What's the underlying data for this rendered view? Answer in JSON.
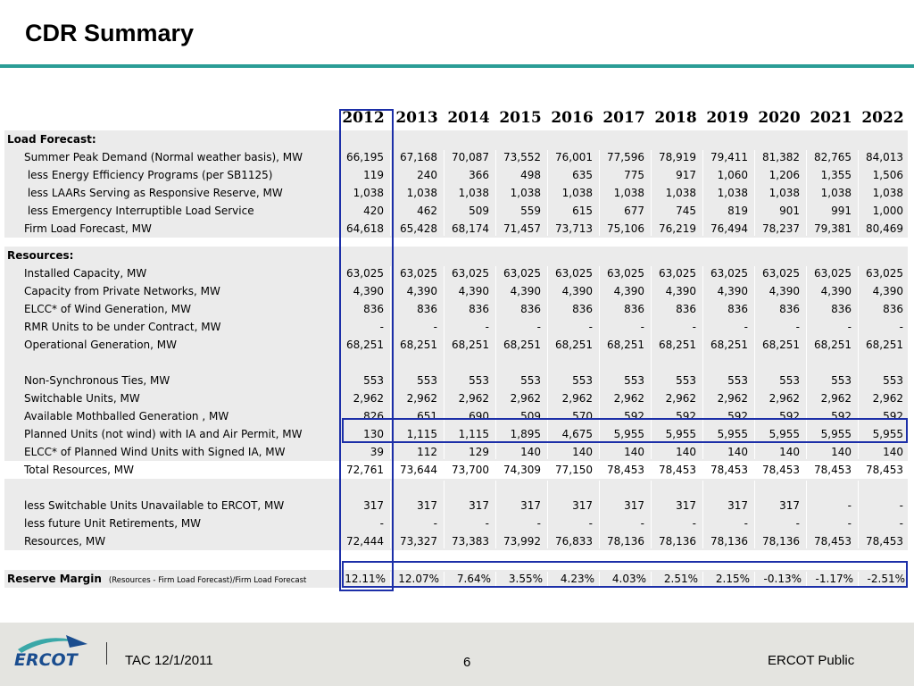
{
  "title": "CDR Summary",
  "years": [
    "2012",
    "2013",
    "2014",
    "2015",
    "2016",
    "2017",
    "2018",
    "2019",
    "2020",
    "2021",
    "2022"
  ],
  "sections": {
    "load": "Load Forecast:",
    "resources": "Resources:"
  },
  "rows": [
    {
      "label": "Summer Peak Demand (Normal weather basis), MW",
      "values": [
        "66,195",
        "67,168",
        "70,087",
        "73,552",
        "76,001",
        "77,596",
        "78,919",
        "79,411",
        "81,382",
        "82,765",
        "84,013"
      ]
    },
    {
      "label": " less Energy Efficiency Programs (per SB1125)",
      "values": [
        "119",
        "240",
        "366",
        "498",
        "635",
        "775",
        "917",
        "1,060",
        "1,206",
        "1,355",
        "1,506"
      ]
    },
    {
      "label": " less LAARs Serving as Responsive Reserve, MW",
      "values": [
        "1,038",
        "1,038",
        "1,038",
        "1,038",
        "1,038",
        "1,038",
        "1,038",
        "1,038",
        "1,038",
        "1,038",
        "1,038"
      ]
    },
    {
      "label": " less Emergency Interruptible Load Service",
      "values": [
        "420",
        "462",
        "509",
        "559",
        "615",
        "677",
        "745",
        "819",
        "901",
        "991",
        "1,000"
      ]
    },
    {
      "label": "Firm Load Forecast, MW",
      "values": [
        "64,618",
        "65,428",
        "68,174",
        "71,457",
        "73,713",
        "75,106",
        "76,219",
        "76,494",
        "78,237",
        "79,381",
        "80,469"
      ]
    },
    {
      "label": "Installed Capacity, MW",
      "values": [
        "63,025",
        "63,025",
        "63,025",
        "63,025",
        "63,025",
        "63,025",
        "63,025",
        "63,025",
        "63,025",
        "63,025",
        "63,025"
      ]
    },
    {
      "label": "Capacity from Private Networks, MW",
      "values": [
        "4,390",
        "4,390",
        "4,390",
        "4,390",
        "4,390",
        "4,390",
        "4,390",
        "4,390",
        "4,390",
        "4,390",
        "4,390"
      ]
    },
    {
      "label": "ELCC* of Wind Generation, MW",
      "values": [
        "836",
        "836",
        "836",
        "836",
        "836",
        "836",
        "836",
        "836",
        "836",
        "836",
        "836"
      ]
    },
    {
      "label": "RMR Units to be under Contract, MW",
      "values": [
        "-",
        "-",
        "-",
        "-",
        "-",
        "-",
        "-",
        "-",
        "-",
        "-",
        "-"
      ]
    },
    {
      "label": "Operational Generation, MW",
      "values": [
        "68,251",
        "68,251",
        "68,251",
        "68,251",
        "68,251",
        "68,251",
        "68,251",
        "68,251",
        "68,251",
        "68,251",
        "68,251"
      ]
    },
    {
      "label": "Non-Synchronous Ties, MW",
      "values": [
        "553",
        "553",
        "553",
        "553",
        "553",
        "553",
        "553",
        "553",
        "553",
        "553",
        "553"
      ]
    },
    {
      "label": "Switchable Units, MW",
      "values": [
        "2,962",
        "2,962",
        "2,962",
        "2,962",
        "2,962",
        "2,962",
        "2,962",
        "2,962",
        "2,962",
        "2,962",
        "2,962"
      ]
    },
    {
      "label": "Available Mothballed Generation , MW",
      "values": [
        "826",
        "651",
        "690",
        "509",
        "570",
        "592",
        "592",
        "592",
        "592",
        "592",
        "592"
      ]
    },
    {
      "label": "Planned Units (not wind) with IA and Air Permit, MW",
      "values": [
        "130",
        "1,115",
        "1,115",
        "1,895",
        "4,675",
        "5,955",
        "5,955",
        "5,955",
        "5,955",
        "5,955",
        "5,955"
      ]
    },
    {
      "label": "ELCC* of Planned Wind Units with Signed IA, MW",
      "values": [
        "39",
        "112",
        "129",
        "140",
        "140",
        "140",
        "140",
        "140",
        "140",
        "140",
        "140"
      ]
    },
    {
      "label": "Total Resources, MW",
      "values": [
        "72,761",
        "73,644",
        "73,700",
        "74,309",
        "77,150",
        "78,453",
        "78,453",
        "78,453",
        "78,453",
        "78,453",
        "78,453"
      ]
    },
    {
      "label": "less Switchable Units Unavailable to ERCOT, MW",
      "values": [
        "317",
        "317",
        "317",
        "317",
        "317",
        "317",
        "317",
        "317",
        "317",
        "-",
        "-"
      ]
    },
    {
      "label": "less future Unit Retirements, MW",
      "values": [
        "-",
        "-",
        "-",
        "-",
        "-",
        "-",
        "-",
        "-",
        "-",
        "-",
        "-"
      ]
    },
    {
      "label": "Resources, MW",
      "values": [
        "72,444",
        "73,327",
        "73,383",
        "73,992",
        "76,833",
        "78,136",
        "78,136",
        "78,136",
        "78,136",
        "78,453",
        "78,453"
      ]
    }
  ],
  "reserve_margin": {
    "label": "Reserve Margin",
    "note": "(Resources - Firm Load Forecast)/Firm Load Forecast",
    "values": [
      "12.11%",
      "12.07%",
      "7.64%",
      "3.55%",
      "4.23%",
      "4.03%",
      "2.51%",
      "2.15%",
      "-0.13%",
      "-1.17%",
      "-2.51%"
    ]
  },
  "footer": {
    "logo_text": "ERCOT",
    "left": "TAC 12/1/2011",
    "page": "6",
    "right": "ERCOT Public"
  },
  "colors": {
    "accent_rule": "#2a9d96",
    "highlight_box": "#1c2fa8",
    "logo_blue": "#1a4d8f",
    "logo_teal": "#3aa8a8"
  }
}
